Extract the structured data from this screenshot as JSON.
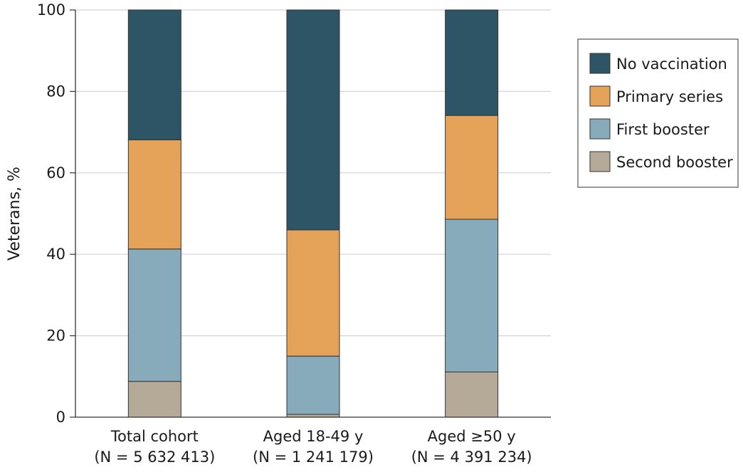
{
  "chart_data": {
    "type": "bar",
    "stacked": true,
    "categories": [
      "Total cohort",
      "Aged 18-49 y",
      "Aged ≥50 y"
    ],
    "category_sublabels": [
      "(N = 5 632 413)",
      "(N = 1 241 179)",
      "(N = 4 391 234)"
    ],
    "ylabel": "Veterans, %",
    "xlabel": "",
    "ylim": [
      0,
      100
    ],
    "yticks": [
      "0",
      "20",
      "40",
      "60",
      "80",
      "100"
    ],
    "grid": true,
    "legend_position": "top-right",
    "series": [
      {
        "name": "Second booster",
        "color": "#b5aa97",
        "values": [
          8.8,
          0.7,
          11.1
        ]
      },
      {
        "name": "First booster",
        "color": "#88abbc",
        "values": [
          32.5,
          14.3,
          37.5
        ]
      },
      {
        "name": "Primary series",
        "color": "#e5a259",
        "values": [
          26.8,
          31.0,
          25.5
        ]
      },
      {
        "name": "No vaccination",
        "color": "#2e5566",
        "values": [
          31.9,
          54.0,
          25.9
        ]
      }
    ],
    "legend_order": [
      "No vaccination",
      "Primary series",
      "First booster",
      "Second booster"
    ]
  }
}
